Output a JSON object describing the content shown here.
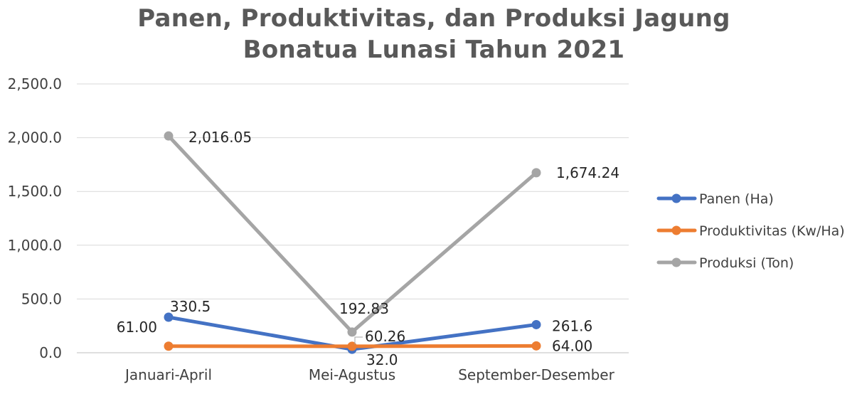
{
  "chart_data": {
    "type": "line",
    "title_lines": [
      "Panen, Produktivitas, dan Produksi Jagung",
      "Bonatua Lunasi Tahun 2021"
    ],
    "categories": [
      "Januari-April",
      "Mei-Agustus",
      "September-Desember"
    ],
    "ylim": [
      0,
      2500
    ],
    "yticks": [
      "0.0",
      "500.0",
      "1,000.0",
      "1,500.0",
      "2,000.0",
      "2,500.0"
    ],
    "grid": true,
    "legend_position": "right",
    "series": [
      {
        "name": "Panen (Ha)",
        "color": "#4472C4",
        "values": [
          330.5,
          32.0,
          261.6
        ],
        "labels": [
          "330.5",
          "32.0",
          "261.6"
        ]
      },
      {
        "name": "Produktivitas (Kw/Ha)",
        "color": "#ED7D31",
        "values": [
          61.0,
          60.26,
          64.0
        ],
        "labels": [
          "61.00",
          "60.26",
          "64.00"
        ]
      },
      {
        "name": "Produksi (Ton)",
        "color": "#A5A5A5",
        "values": [
          2016.05,
          192.83,
          1674.24
        ],
        "labels": [
          "2,016.05",
          "192.83",
          "1,674.24"
        ]
      }
    ]
  }
}
